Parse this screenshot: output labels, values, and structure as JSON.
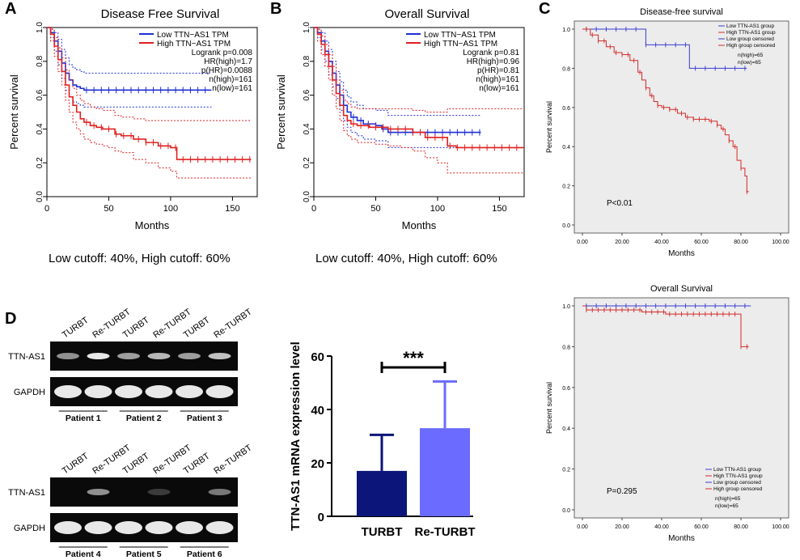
{
  "panel_labels": {
    "a": "A",
    "b": "B",
    "c": "C",
    "d": "D"
  },
  "colors": {
    "low": "#1f2fd6",
    "high": "#e02020",
    "bar_turbt": "#0b157a",
    "bar_returbt": "#6b6bff",
    "spss_bg": "#ececec",
    "spss_low": "#3a3ad0",
    "spss_high": "#d42a2a"
  },
  "panel_a": {
    "cutoff_text": "Low cutoff: 40%, High cutoff: 60%"
  },
  "panel_b": {
    "cutoff_text": "Low cutoff: 40%, High cutoff: 60%"
  },
  "panel_d": {
    "gel_top": {
      "lane_labels": [
        "TURBT",
        "Re-TURBT",
        "TURBT",
        "Re-TURBT",
        "TURBT",
        "Re-TURBT"
      ],
      "row_labels": [
        "TTN-AS1",
        "GAPDH"
      ],
      "patients": [
        "Patient 1",
        "Patient 2",
        "Patient 3"
      ]
    },
    "gel_bottom": {
      "lane_labels": [
        "TURBT",
        "Re-TURBT",
        "TURBT",
        "Re-TURBT",
        "TURBT",
        "Re-TURBT"
      ],
      "row_labels": [
        "TTN-AS1",
        "GAPDH"
      ],
      "patients": [
        "Patient 4",
        "Patient 5",
        "Patient 6"
      ]
    }
  },
  "chart_data": [
    {
      "id": "A",
      "type": "line",
      "subtype": "kaplan-meier",
      "title": "Disease Free Survival",
      "xlabel": "Months",
      "ylabel": "Percent survival",
      "xlim": [
        0,
        170
      ],
      "ylim": [
        0,
        1
      ],
      "xticks": [
        0,
        50,
        100,
        150
      ],
      "yticks": [
        0.0,
        0.2,
        0.4,
        0.6,
        0.8,
        1.0
      ],
      "legend": [
        "Low TTN−AS1 TPM",
        "High TTN−AS1 TPM"
      ],
      "stats": [
        "Logrank p=0.008",
        "HR(high)=1.7",
        "p(HR)=0.0088",
        "n(high)=161",
        "n(low)=161"
      ],
      "series": [
        {
          "name": "Low TTN-AS1 TPM",
          "color": "#1f2fd6",
          "x": [
            0,
            3,
            6,
            9,
            12,
            15,
            18,
            21,
            24,
            27,
            30,
            35,
            40,
            60,
            80,
            100,
            133
          ],
          "y": [
            1,
            0.97,
            0.92,
            0.86,
            0.79,
            0.73,
            0.69,
            0.66,
            0.65,
            0.64,
            0.63,
            0.63,
            0.63,
            0.63,
            0.63,
            0.63,
            0.63
          ]
        },
        {
          "name": "Low upper CI",
          "color": "#1f2fd6",
          "dashed": true,
          "x": [
            0,
            3,
            6,
            9,
            12,
            15,
            18,
            21,
            24,
            27,
            30,
            35,
            133
          ],
          "y": [
            1,
            0.99,
            0.97,
            0.93,
            0.87,
            0.82,
            0.78,
            0.76,
            0.75,
            0.74,
            0.73,
            0.73,
            0.73
          ]
        },
        {
          "name": "Low lower CI",
          "color": "#1f2fd6",
          "dashed": true,
          "x": [
            0,
            3,
            6,
            9,
            12,
            15,
            18,
            21,
            24,
            27,
            30,
            35,
            133
          ],
          "y": [
            1,
            0.94,
            0.86,
            0.78,
            0.7,
            0.63,
            0.59,
            0.56,
            0.55,
            0.54,
            0.53,
            0.53,
            0.53
          ]
        },
        {
          "name": "High TTN-AS1 TPM",
          "color": "#e02020",
          "x": [
            0,
            3,
            6,
            9,
            12,
            15,
            18,
            21,
            24,
            27,
            30,
            35,
            40,
            45,
            50,
            55,
            60,
            70,
            80,
            90,
            100,
            105,
            110,
            120,
            140,
            165
          ],
          "y": [
            1,
            0.96,
            0.89,
            0.81,
            0.74,
            0.66,
            0.59,
            0.54,
            0.5,
            0.46,
            0.44,
            0.42,
            0.41,
            0.4,
            0.4,
            0.37,
            0.36,
            0.34,
            0.32,
            0.3,
            0.29,
            0.22,
            0.22,
            0.22,
            0.22,
            0.22
          ]
        },
        {
          "name": "High upper CI",
          "color": "#e02020",
          "dashed": true,
          "x": [
            0,
            3,
            6,
            9,
            12,
            15,
            18,
            21,
            24,
            27,
            30,
            35,
            40,
            45,
            50,
            55,
            60,
            70,
            80,
            90,
            100,
            105,
            110,
            165
          ],
          "y": [
            1,
            0.99,
            0.94,
            0.88,
            0.82,
            0.75,
            0.69,
            0.64,
            0.6,
            0.57,
            0.55,
            0.53,
            0.52,
            0.51,
            0.51,
            0.48,
            0.47,
            0.46,
            0.45,
            0.45,
            0.45,
            0.45,
            0.45,
            0.45
          ]
        },
        {
          "name": "High lower CI",
          "color": "#e02020",
          "dashed": true,
          "x": [
            0,
            3,
            6,
            9,
            12,
            15,
            18,
            21,
            24,
            27,
            30,
            35,
            40,
            45,
            50,
            55,
            60,
            70,
            80,
            90,
            100,
            105,
            110,
            165
          ],
          "y": [
            1,
            0.92,
            0.83,
            0.74,
            0.66,
            0.57,
            0.5,
            0.44,
            0.4,
            0.37,
            0.34,
            0.32,
            0.31,
            0.3,
            0.29,
            0.27,
            0.26,
            0.22,
            0.2,
            0.17,
            0.15,
            0.11,
            0.11,
            0.11
          ]
        }
      ]
    },
    {
      "id": "B",
      "type": "line",
      "subtype": "kaplan-meier",
      "title": "Overall Survival",
      "xlabel": "Months",
      "ylabel": "Percent survival",
      "xlim": [
        0,
        170
      ],
      "ylim": [
        0,
        1
      ],
      "xticks": [
        0,
        50,
        100,
        150
      ],
      "yticks": [
        0.0,
        0.2,
        0.4,
        0.6,
        0.8,
        1.0
      ],
      "legend": [
        "Low TTN−AS1 TPM",
        "High TTN−AS1 TPM"
      ],
      "stats": [
        "Logrank p=0.81",
        "HR(high)=0.96",
        "p(HR)=0.81",
        "n(high)=161",
        "n(low)=161"
      ],
      "series": [
        {
          "name": "Low TTN-AS1 TPM",
          "color": "#1f2fd6",
          "x": [
            0,
            3,
            6,
            9,
            12,
            15,
            18,
            21,
            24,
            27,
            30,
            35,
            40,
            45,
            50,
            55,
            60,
            70,
            80,
            100,
            135
          ],
          "y": [
            1,
            0.97,
            0.92,
            0.86,
            0.8,
            0.73,
            0.66,
            0.6,
            0.54,
            0.5,
            0.47,
            0.45,
            0.43,
            0.43,
            0.42,
            0.4,
            0.38,
            0.38,
            0.38,
            0.38,
            0.38
          ]
        },
        {
          "name": "Low upper CI",
          "color": "#1f2fd6",
          "dashed": true,
          "x": [
            0,
            3,
            6,
            9,
            12,
            15,
            18,
            21,
            24,
            27,
            30,
            35,
            40,
            50,
            60,
            80,
            135
          ],
          "y": [
            1,
            0.99,
            0.97,
            0.92,
            0.87,
            0.8,
            0.74,
            0.68,
            0.63,
            0.59,
            0.56,
            0.54,
            0.52,
            0.51,
            0.48,
            0.48,
            0.48
          ]
        },
        {
          "name": "Low lower CI",
          "color": "#1f2fd6",
          "dashed": true,
          "x": [
            0,
            3,
            6,
            9,
            12,
            15,
            18,
            21,
            24,
            27,
            30,
            35,
            40,
            50,
            60,
            80,
            135
          ],
          "y": [
            1,
            0.94,
            0.87,
            0.8,
            0.72,
            0.65,
            0.58,
            0.51,
            0.45,
            0.41,
            0.38,
            0.36,
            0.34,
            0.33,
            0.29,
            0.29,
            0.29
          ]
        },
        {
          "name": "High TTN-AS1 TPM",
          "color": "#e02020",
          "x": [
            0,
            3,
            6,
            9,
            12,
            15,
            18,
            21,
            24,
            27,
            30,
            35,
            40,
            45,
            50,
            55,
            60,
            70,
            80,
            90,
            100,
            108,
            115,
            130,
            150,
            170
          ],
          "y": [
            1,
            0.96,
            0.9,
            0.84,
            0.77,
            0.69,
            0.61,
            0.54,
            0.48,
            0.45,
            0.43,
            0.42,
            0.42,
            0.41,
            0.41,
            0.41,
            0.4,
            0.4,
            0.38,
            0.35,
            0.35,
            0.3,
            0.29,
            0.29,
            0.29,
            0.29
          ]
        },
        {
          "name": "High upper CI",
          "color": "#e02020",
          "dashed": true,
          "x": [
            0,
            3,
            6,
            9,
            12,
            15,
            18,
            21,
            24,
            27,
            30,
            35,
            40,
            50,
            60,
            70,
            80,
            90,
            100,
            108,
            170
          ],
          "y": [
            1,
            0.99,
            0.95,
            0.9,
            0.84,
            0.77,
            0.69,
            0.63,
            0.57,
            0.55,
            0.53,
            0.52,
            0.52,
            0.52,
            0.52,
            0.52,
            0.51,
            0.5,
            0.5,
            0.52,
            0.52
          ]
        },
        {
          "name": "High lower CI",
          "color": "#e02020",
          "dashed": true,
          "x": [
            0,
            3,
            6,
            9,
            12,
            15,
            18,
            21,
            24,
            27,
            30,
            35,
            40,
            50,
            60,
            70,
            80,
            90,
            100,
            108,
            170
          ],
          "y": [
            1,
            0.92,
            0.84,
            0.77,
            0.69,
            0.6,
            0.52,
            0.45,
            0.39,
            0.36,
            0.34,
            0.32,
            0.32,
            0.31,
            0.3,
            0.29,
            0.27,
            0.23,
            0.2,
            0.14,
            0.14
          ]
        }
      ]
    },
    {
      "id": "C-top",
      "type": "line",
      "subtype": "kaplan-meier",
      "title": "Disease-free survival",
      "xlabel": "Months",
      "ylabel": "Percent survival",
      "xlim": [
        0,
        100
      ],
      "ylim": [
        0,
        1
      ],
      "xticks": [
        "0.00",
        "20.00",
        "40.00",
        "60.00",
        "80.00",
        "100.00"
      ],
      "yticks": [
        "0.0",
        "0.2",
        "0.4",
        "0.6",
        "0.8",
        "1.0"
      ],
      "legend": [
        "Low TTN-AS1 group",
        "High TTN-AS1 group",
        "Low group censored",
        "High group censored"
      ],
      "n_text": [
        "n(high)=65",
        "n(low)=65"
      ],
      "pvalue": "P<0.01",
      "series": [
        {
          "name": "Low TTN-AS1 group",
          "color": "#3a3ad0",
          "x": [
            0,
            32,
            32,
            54,
            54,
            83
          ],
          "y": [
            1,
            1,
            0.92,
            0.92,
            0.8,
            0.8
          ]
        },
        {
          "name": "High TTN-AS1 group",
          "color": "#d42a2a",
          "x": [
            0,
            4,
            8,
            12,
            16,
            20,
            24,
            28,
            30,
            32,
            34,
            36,
            38,
            40,
            44,
            48,
            52,
            56,
            60,
            64,
            68,
            70,
            72,
            74,
            76,
            78,
            80,
            82,
            83,
            84
          ],
          "y": [
            1,
            0.97,
            0.94,
            0.91,
            0.88,
            0.87,
            0.84,
            0.78,
            0.74,
            0.7,
            0.66,
            0.63,
            0.61,
            0.6,
            0.59,
            0.57,
            0.55,
            0.54,
            0.54,
            0.53,
            0.51,
            0.49,
            0.46,
            0.43,
            0.4,
            0.33,
            0.29,
            0.25,
            0.17,
            0.17
          ]
        }
      ]
    },
    {
      "id": "C-bottom",
      "type": "line",
      "subtype": "kaplan-meier",
      "title": "Overall Survival",
      "xlabel": "Months",
      "ylabel": "Percent survival",
      "xlim": [
        0,
        100
      ],
      "ylim": [
        0,
        1
      ],
      "xticks": [
        "0.00",
        "20.00",
        "40.00",
        "60.00",
        "80.00",
        "100.00"
      ],
      "yticks": [
        "0.0",
        "0.2",
        "0.4",
        "0.6",
        "0.8",
        "1.0"
      ],
      "legend": [
        "Low TTN-AS1 group",
        "High TTN-AS1 group",
        "Low group censored",
        "High group censored"
      ],
      "n_text": [
        "n(high)=65",
        "n(low)=65"
      ],
      "pvalue": "P=0.295",
      "series": [
        {
          "name": "Low TTN-AS1 group",
          "color": "#3a3ad0",
          "x": [
            0,
            85
          ],
          "y": [
            1,
            1
          ]
        },
        {
          "name": "High TTN-AS1 group",
          "color": "#d42a2a",
          "x": [
            0,
            2,
            2,
            30,
            30,
            42,
            42,
            80,
            80,
            84
          ],
          "y": [
            1,
            1,
            0.98,
            0.98,
            0.97,
            0.97,
            0.96,
            0.96,
            0.8,
            0.8
          ]
        }
      ]
    },
    {
      "id": "D-bar",
      "type": "bar",
      "categories": [
        "TURBT",
        "Re-TURBT"
      ],
      "values": [
        17,
        33
      ],
      "errors": [
        13.5,
        17.5
      ],
      "ylabel": "TTN-AS1 mRNA expression level",
      "ylim": [
        0,
        60
      ],
      "yticks": [
        0,
        20,
        40,
        60
      ],
      "significance": "***"
    }
  ]
}
